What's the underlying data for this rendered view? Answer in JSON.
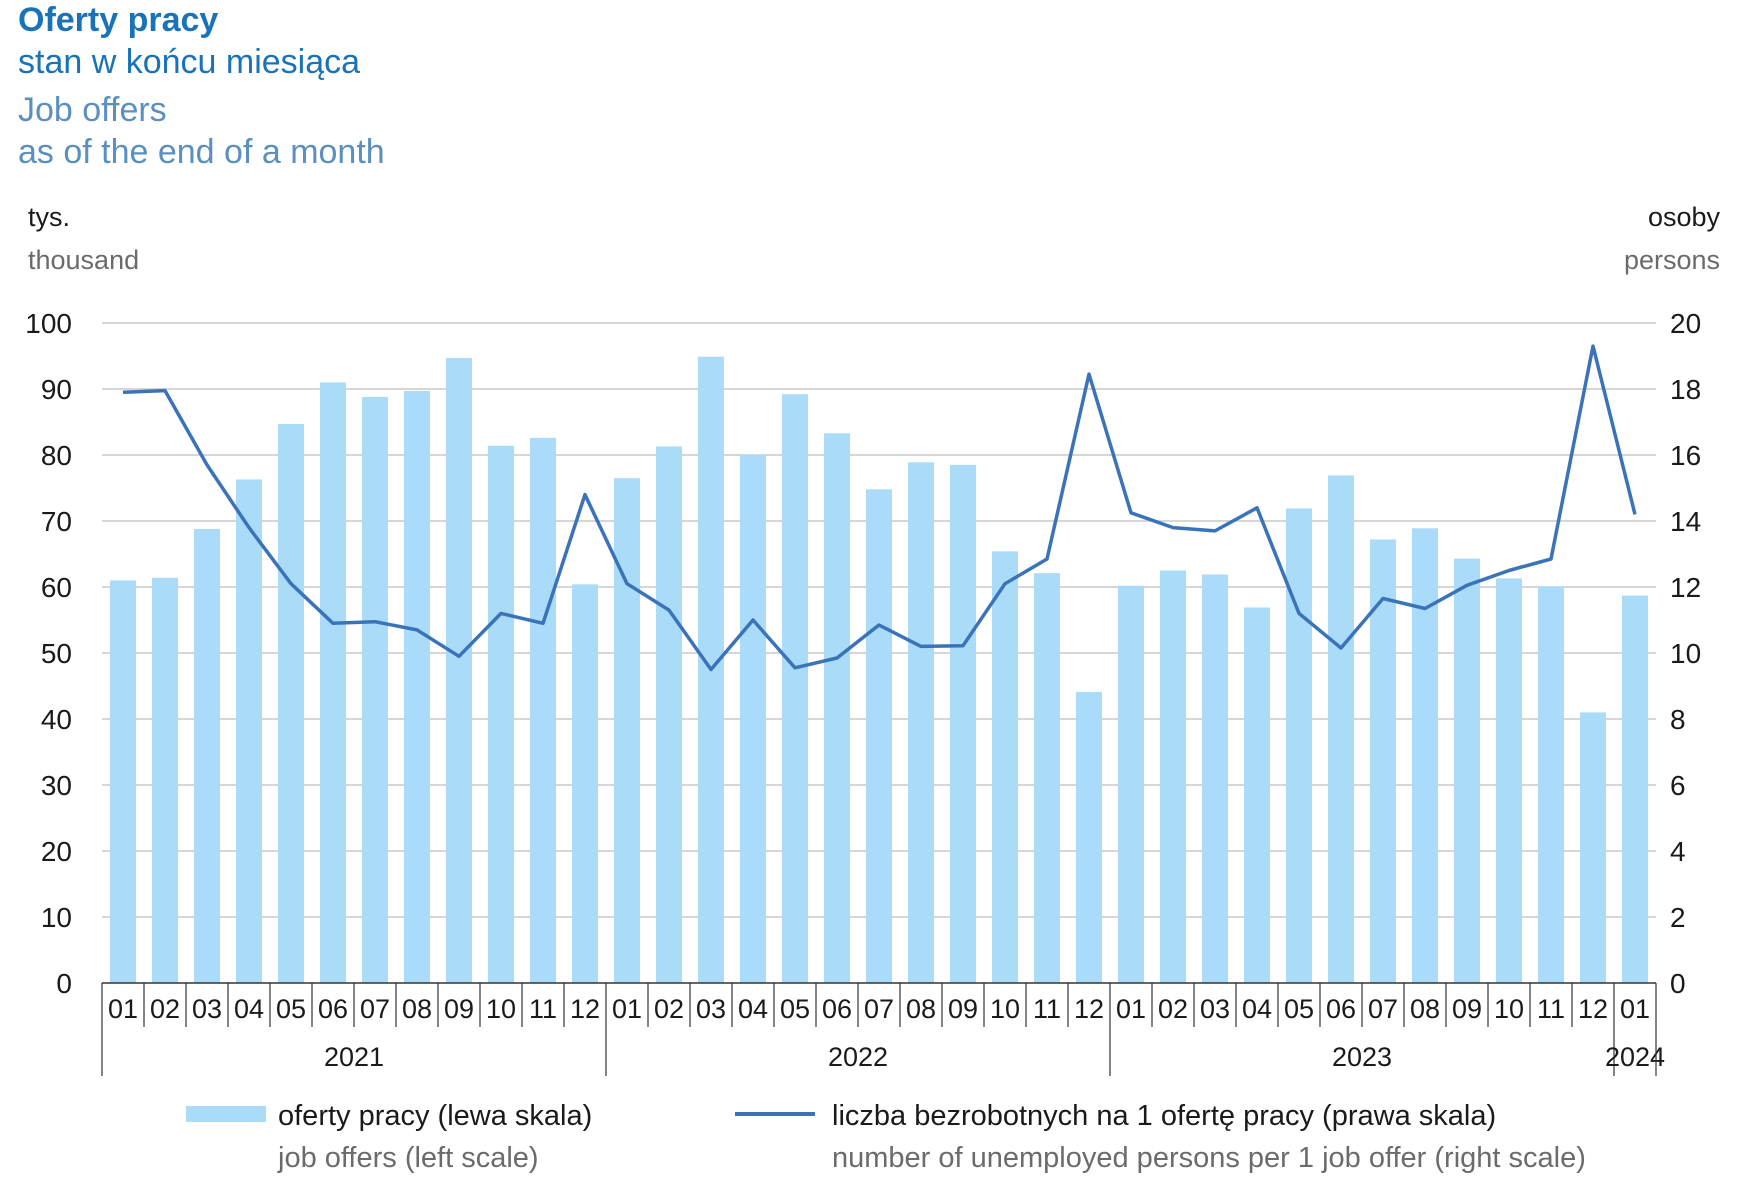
{
  "header": {
    "title": "Oferty pracy",
    "subtitle_pl": "stan w końcu miesiąca",
    "title_en": "Job offers",
    "subtitle_en": "as of the end of a month"
  },
  "axis_units": {
    "left_pl": "tys.",
    "left_en": "thousand",
    "right_pl": "osoby",
    "right_en": "persons"
  },
  "legend": {
    "bars_pl": "oferty pracy (lewa skala)",
    "bars_en": "job offers (left scale)",
    "line_pl": "liczba bezrobotnych na 1 ofertę pracy (prawa skala)",
    "line_en": "number of unemployed persons per 1 job offer (right scale)"
  },
  "colors": {
    "bars": "#aadcfa",
    "line": "#3b73b9",
    "grid": "#c8c8c8",
    "axis": "#333333"
  },
  "chart_data": {
    "type": "bar",
    "categories": [
      "01",
      "02",
      "03",
      "04",
      "05",
      "06",
      "07",
      "08",
      "09",
      "10",
      "11",
      "12",
      "01",
      "02",
      "03",
      "04",
      "05",
      "06",
      "07",
      "08",
      "09",
      "10",
      "11",
      "12",
      "01",
      "02",
      "03",
      "04",
      "05",
      "06",
      "07",
      "08",
      "09",
      "10",
      "11",
      "12",
      "01"
    ],
    "year_groups": [
      {
        "label": "2021",
        "start": 0,
        "count": 12
      },
      {
        "label": "2022",
        "start": 12,
        "count": 12
      },
      {
        "label": "2023",
        "start": 24,
        "count": 12
      },
      {
        "label": "2024",
        "start": 36,
        "count": 1
      }
    ],
    "series": [
      {
        "name": "oferty pracy (lewa skala)",
        "type": "bar",
        "axis": "left",
        "values": [
          61.0,
          61.4,
          68.8,
          76.3,
          84.7,
          91.0,
          88.8,
          89.7,
          94.7,
          81.4,
          82.6,
          60.4,
          76.5,
          81.3,
          94.9,
          80.0,
          89.2,
          83.3,
          74.8,
          78.9,
          78.5,
          65.4,
          62.1,
          44.1,
          60.2,
          62.5,
          61.9,
          56.9,
          71.9,
          76.9,
          67.2,
          68.9,
          64.3,
          61.3,
          60.1,
          41.0,
          58.7
        ]
      },
      {
        "name": "liczba bezrobotnych na 1 ofertę pracy (prawa skala)",
        "type": "line",
        "axis": "right",
        "values": [
          17.9,
          17.95,
          15.7,
          13.8,
          12.1,
          10.9,
          10.95,
          10.7,
          9.9,
          11.2,
          10.9,
          14.8,
          12.1,
          11.3,
          9.5,
          11.0,
          9.55,
          9.85,
          10.85,
          10.2,
          10.22,
          12.1,
          12.85,
          18.45,
          14.25,
          13.8,
          13.7,
          14.4,
          11.2,
          10.15,
          11.65,
          11.35,
          12.05,
          12.5,
          12.85,
          19.3,
          14.2
        ]
      }
    ],
    "left_axis": {
      "min": 0,
      "max": 100,
      "step": 10,
      "ticks": [
        "0",
        "10",
        "20",
        "30",
        "40",
        "50",
        "60",
        "70",
        "80",
        "90",
        "100"
      ]
    },
    "right_axis": {
      "min": 0,
      "max": 20,
      "step": 2,
      "ticks": [
        "0",
        "2",
        "4",
        "6",
        "8",
        "10",
        "12",
        "14",
        "16",
        "18",
        "20"
      ]
    },
    "grid": true,
    "legend_position": "bottom"
  }
}
